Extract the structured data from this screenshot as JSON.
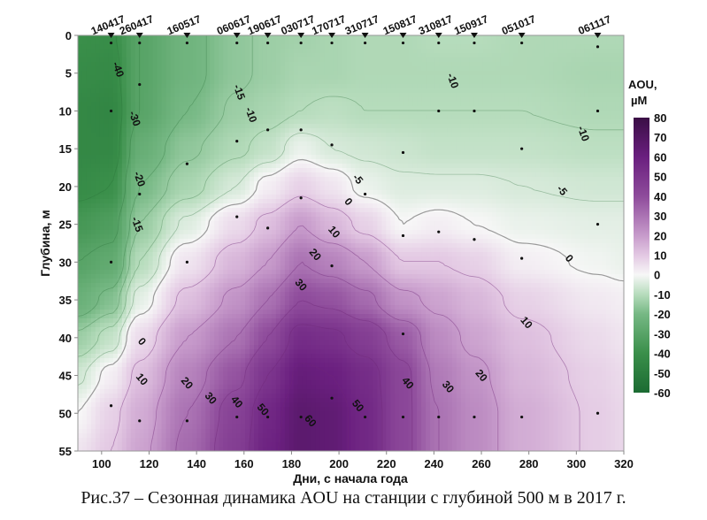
{
  "chart_data": {
    "type": "heatmap",
    "subtype": "filled-contour",
    "title": "",
    "xlabel": "Дни, с начала года",
    "ylabel": "Глубина, м",
    "xlim": [
      90,
      320
    ],
    "ylim": [
      55,
      0
    ],
    "x_ticks": [
      100,
      120,
      140,
      160,
      180,
      200,
      220,
      240,
      260,
      280,
      300,
      320
    ],
    "y_ticks": [
      0,
      5,
      10,
      15,
      20,
      25,
      30,
      35,
      40,
      45,
      50,
      55
    ],
    "colorbar": {
      "title_line1": "AOU,",
      "title_line2": "µM",
      "range": [
        -60,
        80
      ],
      "ticks": [
        80,
        70,
        60,
        50,
        40,
        30,
        20,
        10,
        0,
        -10,
        -20,
        -30,
        -40,
        -50,
        -60
      ],
      "colors": {
        "-60": "#1b6b32",
        "-40": "#3a8f4a",
        "-20": "#76b884",
        "-10": "#b6dcbc",
        "0": "#f7f7f7",
        "10": "#e3c8e3",
        "20": "#c79bcb",
        "40": "#8e4b9b",
        "60": "#6a1f7f",
        "80": "#3a0e45"
      }
    },
    "stations": [
      {
        "label": "140417",
        "day": 104,
        "sample_depths": [
          1,
          10,
          30,
          49
        ]
      },
      {
        "label": "260417",
        "day": 116,
        "sample_depths": [
          1,
          6.5,
          21,
          51
        ]
      },
      {
        "label": "160517",
        "day": 136,
        "sample_depths": [
          1,
          17,
          30,
          51
        ]
      },
      {
        "label": "060617",
        "day": 157,
        "sample_depths": [
          1,
          14,
          24,
          50.5
        ]
      },
      {
        "label": "190617",
        "day": 170,
        "sample_depths": [
          1,
          12.5,
          25.5,
          50.5
        ]
      },
      {
        "label": "030717",
        "day": 184,
        "sample_depths": [
          1,
          12.5,
          21.5,
          50.5
        ]
      },
      {
        "label": "170717",
        "day": 197,
        "sample_depths": [
          1,
          14.5,
          30.5,
          48
        ]
      },
      {
        "label": "310717",
        "day": 211,
        "sample_depths": [
          1,
          21,
          50.5
        ]
      },
      {
        "label": "150817",
        "day": 227,
        "sample_depths": [
          1,
          15.5,
          26.5,
          39.5,
          50.5
        ]
      },
      {
        "label": "310817",
        "day": 242,
        "sample_depths": [
          1,
          10,
          26,
          50.5
        ]
      },
      {
        "label": "150917",
        "day": 257,
        "sample_depths": [
          1,
          10,
          27,
          50.5
        ]
      },
      {
        "label": "051017",
        "day": 277,
        "sample_depths": [
          1,
          15,
          29.5,
          50.5
        ]
      },
      {
        "label": "061117",
        "day": 309,
        "sample_depths": [
          1.5,
          10,
          25,
          50
        ]
      }
    ],
    "grid": [
      {
        "day": 90,
        "values": [
          -40,
          -42,
          -44,
          -44,
          -42,
          -36,
          -30,
          -24,
          -14,
          -6,
          0,
          4
        ]
      },
      {
        "day": 104,
        "values": [
          -41,
          -43,
          -45,
          -44,
          -40,
          -33,
          -27,
          -18,
          -8,
          2,
          8,
          10
        ]
      },
      {
        "day": 116,
        "values": [
          -30,
          -30,
          -30,
          -25,
          -20,
          -15,
          -10,
          -3,
          6,
          12,
          16,
          18
        ]
      },
      {
        "day": 136,
        "values": [
          -22,
          -22,
          -20,
          -16,
          -12,
          -4,
          4,
          12,
          20,
          26,
          30,
          32
        ]
      },
      {
        "day": 157,
        "values": [
          -16,
          -16,
          -14,
          -11,
          -5,
          6,
          14,
          22,
          30,
          38,
          44,
          46
        ]
      },
      {
        "day": 170,
        "values": [
          -14,
          -14,
          -12,
          -8,
          2,
          12,
          20,
          30,
          40,
          50,
          56,
          58
        ]
      },
      {
        "day": 184,
        "values": [
          -13,
          -12,
          -10,
          -2,
          8,
          20,
          30,
          40,
          54,
          62,
          66,
          66
        ]
      },
      {
        "day": 197,
        "values": [
          -12,
          -12,
          -9,
          -5,
          4,
          14,
          26,
          38,
          52,
          60,
          64,
          64
        ]
      },
      {
        "day": 211,
        "values": [
          -11,
          -11,
          -10,
          -6,
          -2,
          8,
          20,
          32,
          46,
          54,
          56,
          56
        ]
      },
      {
        "day": 227,
        "values": [
          -11,
          -11,
          -10,
          -7,
          -4,
          0,
          10,
          22,
          36,
          42,
          42,
          42
        ]
      },
      {
        "day": 242,
        "values": [
          -10,
          -11,
          -10,
          -8,
          -4,
          2,
          10,
          18,
          24,
          28,
          30,
          30
        ]
      },
      {
        "day": 257,
        "values": [
          -10,
          -11,
          -10,
          -8,
          -4,
          0,
          8,
          14,
          18,
          22,
          24,
          24
        ]
      },
      {
        "day": 277,
        "values": [
          -11,
          -11,
          -10,
          -8,
          -5,
          -2,
          2,
          8,
          12,
          14,
          16,
          16
        ]
      },
      {
        "day": 309,
        "values": [
          -11,
          -12,
          -11,
          -9,
          -6,
          -3,
          -1,
          3,
          6,
          8,
          9,
          9
        ]
      },
      {
        "day": 320,
        "values": [
          -11,
          -12,
          -11,
          -9,
          -6,
          -3,
          -2,
          2,
          4,
          6,
          7,
          7
        ]
      }
    ],
    "grid_depths": [
      0,
      5,
      10,
      15,
      20,
      25,
      30,
      35,
      40,
      45,
      50,
      55
    ],
    "contour_levels": [
      -40,
      -30,
      -20,
      -15,
      -10,
      -5,
      0,
      10,
      20,
      30,
      40,
      50,
      60
    ],
    "contour_labels": [
      {
        "text": "-40",
        "day": 107,
        "depth": 4.5
      },
      {
        "text": "-30",
        "day": 114,
        "depth": 11
      },
      {
        "text": "-20",
        "day": 116,
        "depth": 19
      },
      {
        "text": "-15",
        "day": 115,
        "depth": 25
      },
      {
        "text": "-15",
        "day": 158,
        "depth": 7.5
      },
      {
        "text": "-10",
        "day": 163,
        "depth": 10.5
      },
      {
        "text": "-5",
        "day": 208,
        "depth": 19
      },
      {
        "text": "0",
        "day": 204,
        "depth": 22
      },
      {
        "text": "10",
        "day": 198,
        "depth": 26
      },
      {
        "text": "20",
        "day": 190,
        "depth": 29
      },
      {
        "text": "30",
        "day": 184,
        "depth": 33
      },
      {
        "text": "-10",
        "day": 248,
        "depth": 6
      },
      {
        "text": "-10",
        "day": 303,
        "depth": 13
      },
      {
        "text": "-5",
        "day": 294,
        "depth": 20.5
      },
      {
        "text": "0",
        "day": 297,
        "depth": 29.5
      },
      {
        "text": "0",
        "day": 117,
        "depth": 40.5
      },
      {
        "text": "10",
        "day": 117,
        "depth": 45.5
      },
      {
        "text": "20",
        "day": 136,
        "depth": 46
      },
      {
        "text": "30",
        "day": 146,
        "depth": 48
      },
      {
        "text": "40",
        "day": 157,
        "depth": 48.5
      },
      {
        "text": "50",
        "day": 168,
        "depth": 49.5
      },
      {
        "text": "60",
        "day": 188,
        "depth": 51
      },
      {
        "text": "50",
        "day": 208,
        "depth": 49
      },
      {
        "text": "40",
        "day": 229,
        "depth": 46
      },
      {
        "text": "30",
        "day": 246,
        "depth": 46.5
      },
      {
        "text": "20",
        "day": 260,
        "depth": 45
      },
      {
        "text": "10",
        "day": 279,
        "depth": 38
      }
    ]
  },
  "caption": "Рис.37 – Сезонная динамика AOU на станции с глубиной 500 м в 2017 г."
}
